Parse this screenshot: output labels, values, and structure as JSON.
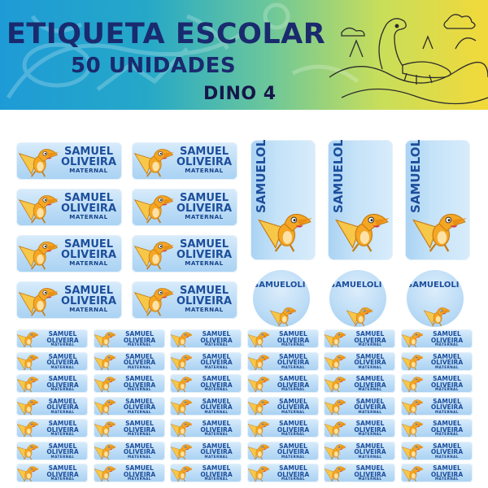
{
  "banner": {
    "title": "ETIQUETA ESCOLAR",
    "quantity": "50 UNIDADES",
    "model": "DINO 4"
  },
  "label": {
    "name_first": "SAMUEL",
    "name_last": "OLIVEIRA",
    "grade": "MATERNAL"
  },
  "colors": {
    "label_text": "#1c4e9c",
    "title_text": "#1a2a6e",
    "dino_body": "#f5a623",
    "dino_wing": "#f7c74a",
    "label_bg": "#bcdcf6"
  },
  "icons": [
    "pterodactyl-icon",
    "dinosaur-sketch-icon",
    "bone-pattern-icon"
  ]
}
